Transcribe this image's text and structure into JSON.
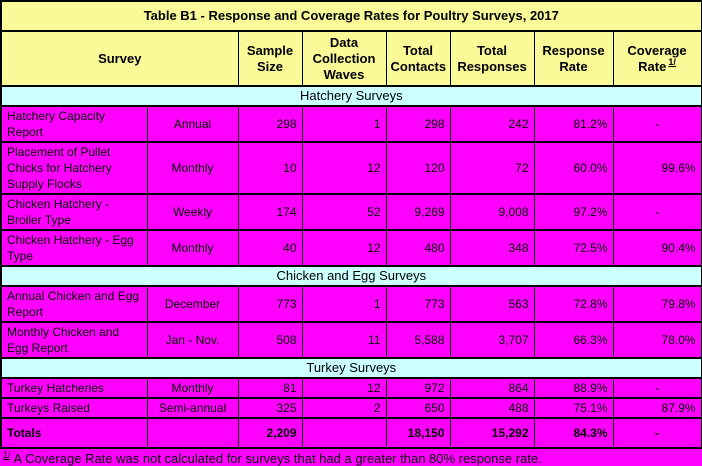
{
  "title": "Table B1 - Response and Coverage Rates for Poultry Surveys, 2017",
  "columns": {
    "survey": "Survey",
    "sample_size": "Sample Size",
    "data_collection_waves": "Data Collection Waves",
    "total_contacts": "Total Contacts",
    "total_responses": "Total Responses",
    "response_rate": "Response Rate",
    "coverage_rate": "Coverage Rate",
    "coverage_marker": "1/"
  },
  "sections": [
    {
      "label": "Hatchery Surveys",
      "rows": [
        [
          "Hatchery Capacity Report",
          "Annual",
          "298",
          "1",
          "298",
          "242",
          "81.2%",
          "-"
        ],
        [
          "Placement of Pullet Chicks for Hatchery Supply Flocks",
          "Monthly",
          "10",
          "12",
          "120",
          "72",
          "60.0%",
          "99.6%"
        ],
        [
          "Chicken Hatchery - Broiler Type",
          "Weekly",
          "174",
          "52",
          "9,269",
          "9,008",
          "97.2%",
          "-"
        ],
        [
          "Chicken Hatchery - Egg Type",
          "Monthly",
          "40",
          "12",
          "480",
          "348",
          "72.5%",
          "90.4%"
        ]
      ]
    },
    {
      "label": "Chicken and Egg Surveys",
      "rows": [
        [
          "Annual Chicken and Egg Report",
          "December",
          "773",
          "1",
          "773",
          "563",
          "72.8%",
          "79.8%"
        ],
        [
          "Monthly Chicken and Egg Report",
          "Jan - Nov.",
          "508",
          "11",
          "5,588",
          "3,707",
          "66.3%",
          "78.0%"
        ]
      ]
    },
    {
      "label": "Turkey Surveys",
      "rows": [
        [
          "Turkey Hatcheries",
          "Monthly",
          "81",
          "12",
          "972",
          "864",
          "88.9%",
          "-"
        ],
        [
          "Turkeys Raised",
          "Semi-annual",
          "325",
          "2",
          "650",
          "488",
          "75.1%",
          "87.9%"
        ]
      ]
    }
  ],
  "totals": [
    "Totals",
    "",
    "2,209",
    "",
    "18,150",
    "15,292",
    "84.3%",
    "-"
  ],
  "footnote": {
    "marker": "1/",
    "text": "A Coverage Rate was not calculated for surveys that had a greater than 80% response rate."
  },
  "colors": {
    "header_bg": "#FAFA99",
    "section_bg": "#CCFFFF",
    "row_bg": "#FF00FF",
    "border": "#000000",
    "text": "#000000"
  }
}
